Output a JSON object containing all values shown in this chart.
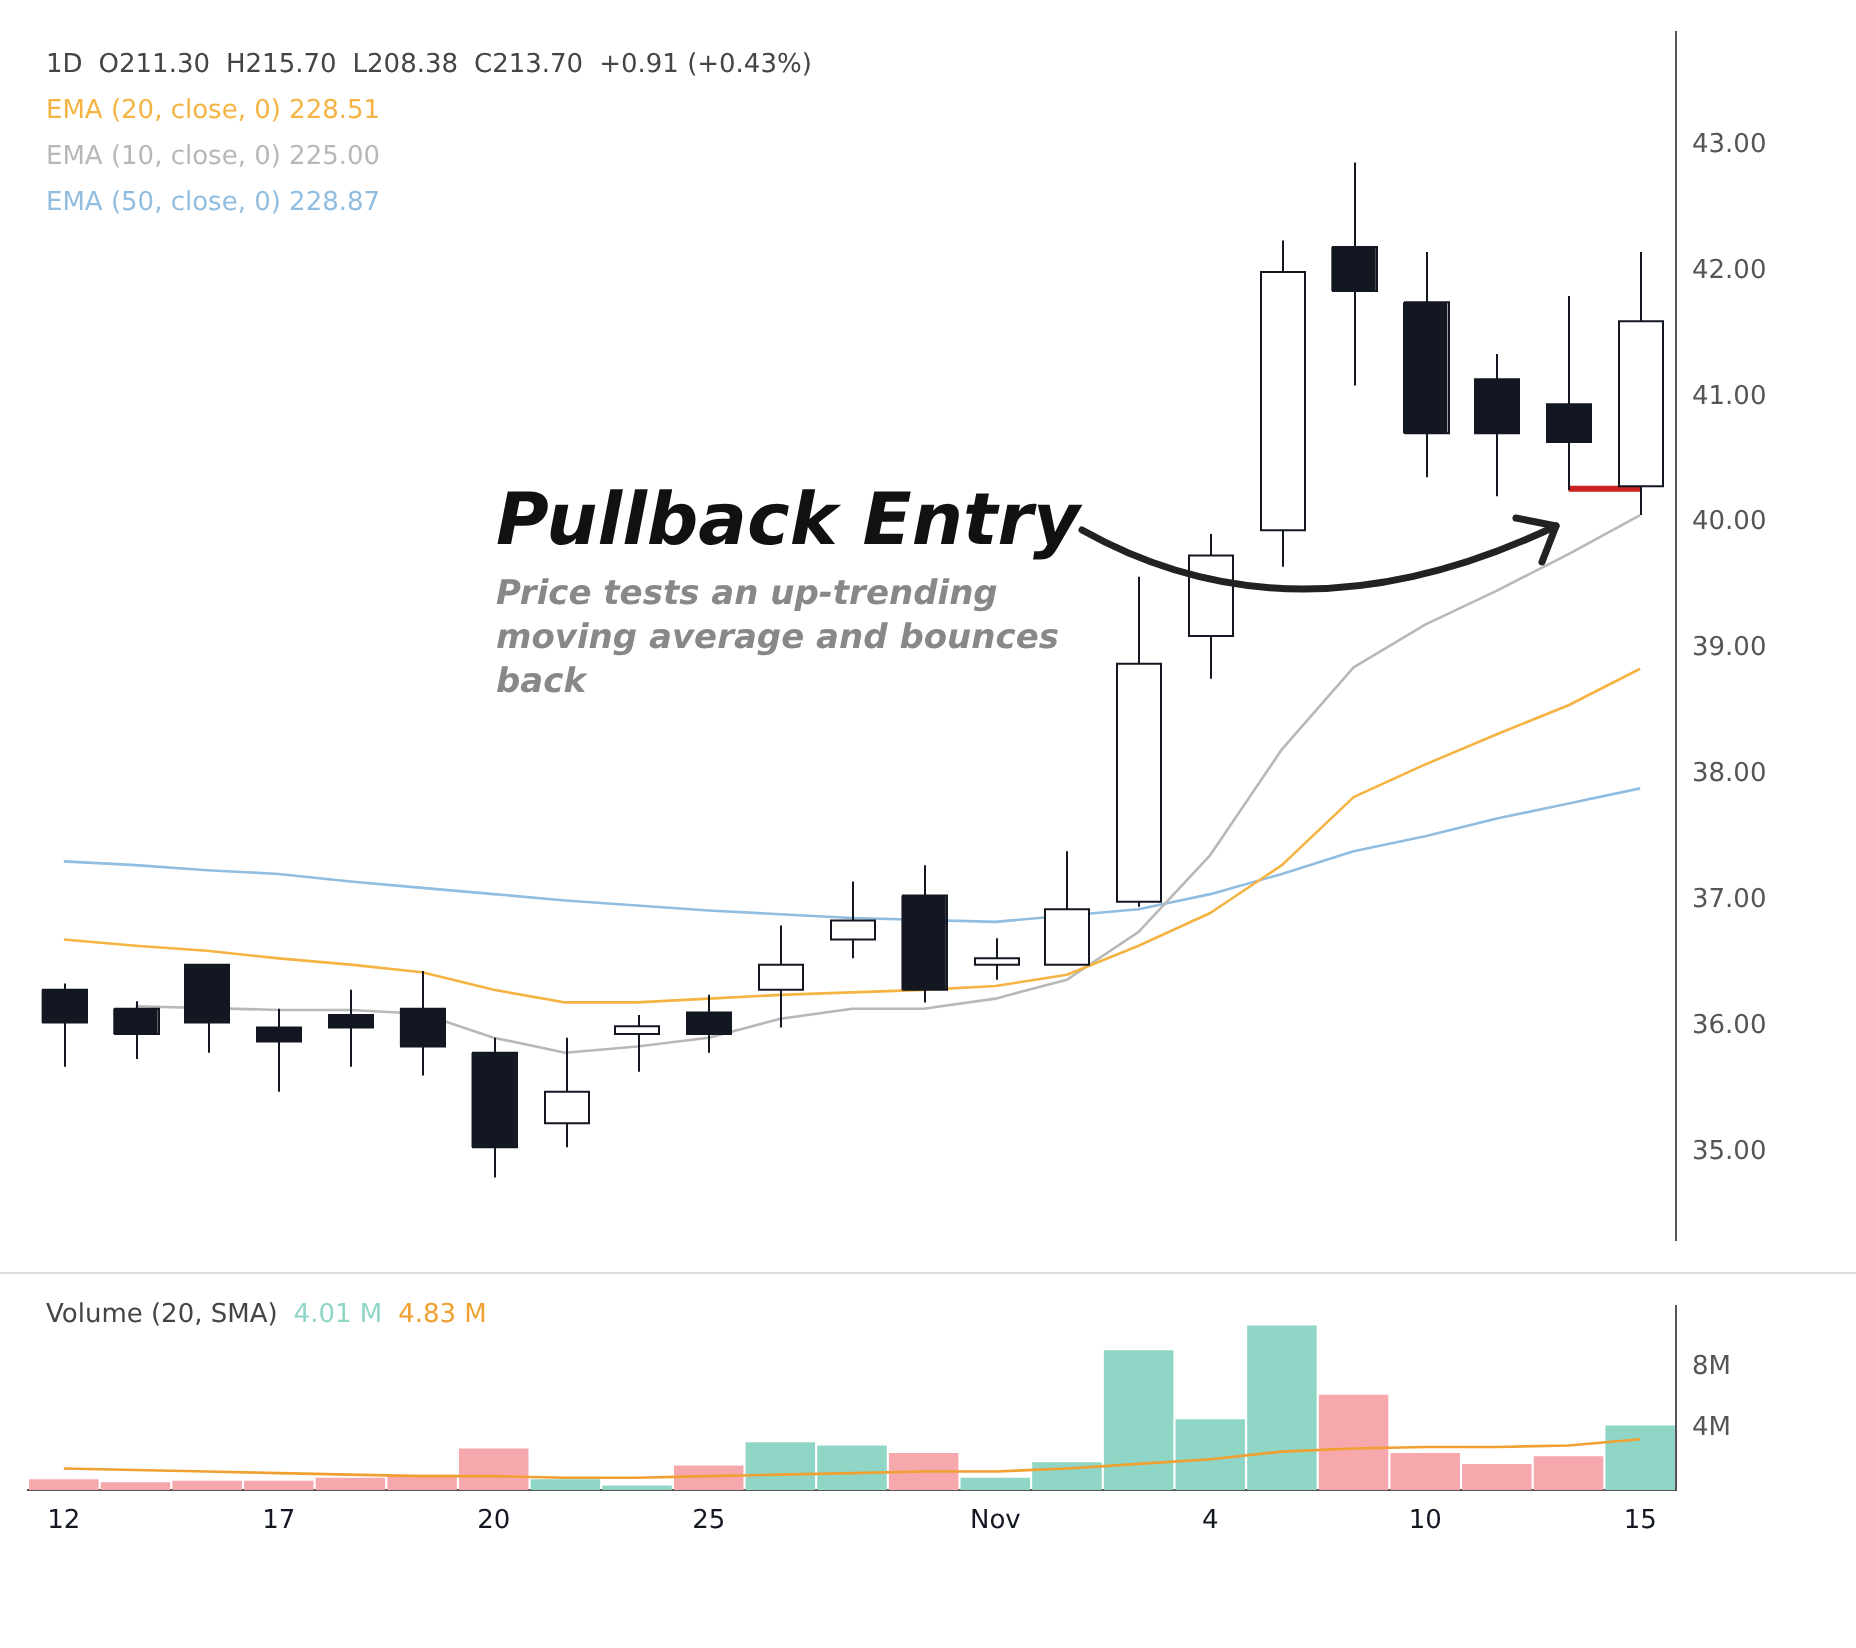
{
  "chart_data": [
    {
      "type": "candlestick",
      "title": "1D",
      "categories": [
        null,
        null,
        null,
        null,
        null,
        null,
        null,
        null,
        null,
        null,
        null,
        null,
        null,
        null,
        null,
        null,
        null,
        null,
        null,
        null,
        null,
        null,
        null
      ],
      "ohlc": [
        [
          36.29,
          36.34,
          35.68,
          36.03
        ],
        [
          36.14,
          36.2,
          35.74,
          35.94
        ],
        [
          36.49,
          36.49,
          35.79,
          36.03
        ],
        [
          35.99,
          36.14,
          35.48,
          35.88
        ],
        [
          36.09,
          36.29,
          35.68,
          35.99
        ],
        [
          36.14,
          36.44,
          35.61,
          35.84
        ],
        [
          35.79,
          35.91,
          34.8,
          35.04
        ],
        [
          35.23,
          35.91,
          35.04,
          35.48
        ],
        [
          35.94,
          36.09,
          35.64,
          36.0
        ],
        [
          36.11,
          36.25,
          35.79,
          35.94
        ],
        [
          36.29,
          36.8,
          35.99,
          36.49
        ],
        [
          36.69,
          37.15,
          36.54,
          36.84
        ],
        [
          37.04,
          37.28,
          36.19,
          36.29
        ],
        [
          36.49,
          36.7,
          36.37,
          36.54
        ],
        [
          36.49,
          37.39,
          36.49,
          36.93
        ],
        [
          36.99,
          39.57,
          36.95,
          38.88
        ],
        [
          39.1,
          39.91,
          38.76,
          39.74
        ],
        [
          39.94,
          42.24,
          39.65,
          41.99
        ],
        [
          42.19,
          42.86,
          41.09,
          41.84
        ],
        [
          41.75,
          42.15,
          40.36,
          40.71
        ],
        [
          41.14,
          41.34,
          40.21,
          40.71
        ],
        [
          40.94,
          41.8,
          40.26,
          40.64
        ],
        [
          40.29,
          42.15,
          40.06,
          41.6
        ]
      ],
      "series": [
        {
          "type": "line",
          "name": "EMA (20, close, 0)  228.51",
          "color": "#f5b342",
          "values": [
            36.69,
            36.64,
            36.6,
            36.54,
            36.49,
            36.43,
            36.29,
            36.19,
            36.19,
            36.22,
            36.25,
            36.27,
            36.29,
            36.32,
            36.41,
            36.64,
            36.9,
            37.28,
            37.82,
            38.08,
            38.32,
            38.55,
            38.84
          ]
        },
        {
          "type": "line",
          "name": "EMA (10, close, 0)  225.00",
          "color": "#b8b8b8",
          "values": [
            null,
            36.16,
            null,
            36.13,
            36.13,
            36.1,
            35.91,
            35.79,
            35.84,
            35.91,
            36.06,
            36.14,
            36.14,
            36.22,
            36.37,
            36.75,
            37.36,
            38.2,
            38.85,
            39.19,
            39.46,
            39.75,
            40.06
          ]
        },
        {
          "type": "line",
          "name": "EMA (50, close, 0)  228.87",
          "color": "#90bde0",
          "values": [
            37.31,
            37.28,
            37.24,
            37.21,
            37.15,
            37.1,
            37.05,
            37.0,
            36.96,
            36.92,
            36.89,
            36.86,
            null,
            36.83,
            null,
            36.93,
            37.05,
            37.21,
            37.39,
            37.51,
            37.65,
            37.77,
            37.89
          ]
        },
        {
          "type": "line",
          "color": "#cc2222",
          "values": [
            null,
            null,
            null,
            null,
            null,
            null,
            null,
            null,
            null,
            null,
            null,
            null,
            null,
            null,
            null,
            null,
            null,
            null,
            null,
            null,
            null,
            40.27,
            40.27
          ]
        }
      ],
      "ylim": [
        34.3,
        43.9
      ],
      "yticks": [
        {
          "value": 35,
          "label": "35.00"
        },
        {
          "value": 36,
          "label": "36.00"
        },
        {
          "value": 37,
          "label": "37.00"
        },
        {
          "value": 38,
          "label": "38.00"
        },
        {
          "value": 39,
          "label": "39.00"
        },
        {
          "value": 40,
          "label": "40.00"
        },
        {
          "value": 41,
          "label": "41.00"
        },
        {
          "value": 42,
          "label": "42.00"
        },
        {
          "value": 43,
          "label": "43.00"
        }
      ],
      "annotations": [
        "O211.30",
        "H215.70",
        "L208.38",
        "C213.70",
        "+0.91 (+0.43%)",
        "Pullback Entry",
        "Price tests an up-trending moving average and bounces back"
      ],
      "tick_labels": "y",
      "legend": "top left",
      "grid": false
    },
    {
      "type": "bar",
      "title": "Volume (20, SMA)",
      "categories": [
        "12",
        null,
        null,
        "17",
        null,
        null,
        "20",
        null,
        null,
        "25",
        null,
        null,
        null,
        "Nov",
        null,
        null,
        "4",
        null,
        null,
        "10",
        null,
        null,
        "15"
      ],
      "series": [
        {
          "name": "4.01 M",
          "color": "#8fd6c6",
          "colors": [
            "#f7a8ad",
            "#f7a8ad",
            "#f7a8ad",
            "#f7a8ad",
            "#f7a8ad",
            "#f7a8ad",
            "#f7a8ad",
            "#8fd6c6",
            "#8fd6c6",
            "#f7a8ad",
            "#8fd6c6",
            "#8fd6c6",
            "#f7a8ad",
            "#8fd6c6",
            "#8fd6c6",
            "#8fd6c6",
            "#8fd6c6",
            "#8fd6c6",
            "#f7a8ad",
            "#f7a8ad",
            "#f7a8ad",
            "#f7a8ad",
            "#8fd6c6"
          ],
          "values": [
            0.7,
            0.5,
            0.6,
            0.6,
            0.8,
            1.0,
            2.7,
            0.7,
            0.3,
            1.6,
            3.1,
            2.9,
            2.4,
            0.8,
            1.8,
            9.1,
            4.6,
            10.7,
            6.2,
            2.4,
            1.7,
            2.2,
            4.2
          ]
        },
        {
          "type": "line",
          "name": "4.83 M",
          "color": "#f0a030",
          "values": [
            1.4,
            1.3,
            1.2,
            1.1,
            1.0,
            0.9,
            0.9,
            0.8,
            0.8,
            0.9,
            1.0,
            1.1,
            1.2,
            1.2,
            1.4,
            1.7,
            2.0,
            2.5,
            2.7,
            2.8,
            2.8,
            2.9,
            3.3
          ]
        }
      ],
      "ylim": [
        0,
        12
      ],
      "yticks": [
        {
          "value": 4,
          "label": "4M"
        },
        {
          "value": 8,
          "label": "8M"
        }
      ],
      "legend": "top left",
      "grid": false
    }
  ]
}
